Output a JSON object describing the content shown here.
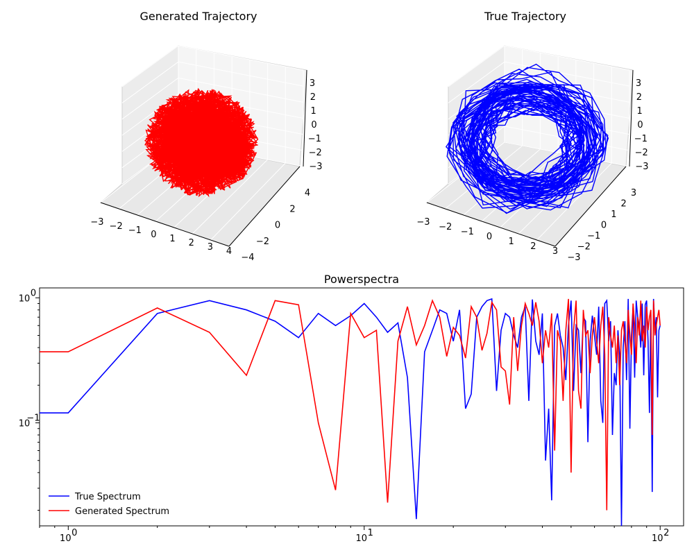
{
  "chart_data": [
    {
      "type": "line",
      "projection": "3d",
      "title": "Generated Trajectory",
      "color": "#ff0000",
      "x_ticks": [
        "−3",
        "−2",
        "−1",
        "0",
        "1",
        "2",
        "3",
        "4"
      ],
      "y_ticks": [
        "−4",
        "−2",
        "0",
        "2",
        "4"
      ],
      "z_ticks": [
        "−3",
        "−2",
        "−1",
        "0",
        "1",
        "2",
        "3"
      ],
      "xlim": [
        -3,
        4
      ],
      "ylim": [
        -4,
        4
      ],
      "zlim": [
        -3,
        3
      ],
      "grid": true
    },
    {
      "type": "line",
      "projection": "3d",
      "title": "True Trajectory",
      "color": "#0000ff",
      "x_ticks": [
        "−3",
        "−2",
        "−1",
        "0",
        "1",
        "2",
        "3"
      ],
      "y_ticks": [
        "−3",
        "−2",
        "−1",
        "0",
        "1",
        "2",
        "3"
      ],
      "z_ticks": [
        "−3",
        "−2",
        "−1",
        "0",
        "1",
        "2",
        "3"
      ],
      "xlim": [
        -3,
        3
      ],
      "ylim": [
        -3,
        3
      ],
      "zlim": [
        -3,
        3
      ],
      "grid": true
    },
    {
      "type": "line",
      "title": "Powerspectra",
      "xscale": "log",
      "yscale": "log",
      "xlim": [
        0.8,
        120
      ],
      "ylim": [
        0.015,
        1.2
      ],
      "x_ticks": [
        {
          "value": 1,
          "label": "10",
          "exp": "0"
        },
        {
          "value": 10,
          "label": "10",
          "exp": "1"
        },
        {
          "value": 100,
          "label": "10",
          "exp": "2"
        }
      ],
      "y_ticks": [
        {
          "value": 0.1,
          "label": "10",
          "exp": "−1"
        },
        {
          "value": 1,
          "label": "10",
          "exp": "0"
        }
      ],
      "legend_position": "bottom-left",
      "series": [
        {
          "name": "True Spectrum",
          "color": "#0000ff",
          "x": [
            0.8,
            1,
            2,
            3,
            4,
            5,
            6,
            7,
            8,
            9,
            10,
            11,
            12,
            13,
            14,
            15,
            16,
            17,
            18,
            19,
            20,
            21,
            22,
            23,
            24,
            25,
            26,
            27,
            28,
            29,
            30,
            31,
            32,
            33,
            34,
            35,
            36,
            37,
            38,
            39,
            40,
            41,
            42,
            43,
            44,
            45,
            46,
            47,
            48,
            49,
            50,
            51,
            52,
            53,
            54,
            55,
            56,
            57,
            58,
            59,
            60,
            61,
            62,
            63,
            64,
            65,
            66,
            67,
            68,
            69,
            70,
            71,
            72,
            73,
            74,
            75,
            76,
            77,
            78,
            79,
            80,
            81,
            82,
            83,
            84,
            85,
            86,
            87,
            88,
            89,
            90,
            91,
            92,
            93,
            94,
            95,
            96,
            97,
            98,
            99,
            100
          ],
          "y": [
            0.12,
            0.12,
            0.75,
            0.95,
            0.8,
            0.65,
            0.48,
            0.75,
            0.6,
            0.72,
            0.9,
            0.7,
            0.53,
            0.63,
            0.23,
            0.017,
            0.37,
            0.55,
            0.8,
            0.75,
            0.45,
            0.8,
            0.13,
            0.17,
            0.7,
            0.85,
            0.95,
            0.98,
            0.18,
            0.55,
            0.75,
            0.7,
            0.5,
            0.4,
            0.7,
            0.85,
            0.15,
            0.97,
            0.45,
            0.35,
            0.75,
            0.05,
            0.13,
            0.024,
            0.6,
            0.75,
            0.5,
            0.4,
            0.22,
            0.6,
            0.95,
            0.18,
            0.6,
            0.55,
            0.25,
            0.7,
            0.65,
            0.07,
            0.45,
            0.72,
            0.5,
            0.35,
            0.85,
            0.15,
            0.1,
            0.9,
            0.95,
            0.45,
            0.65,
            0.08,
            0.25,
            0.2,
            0.55,
            0.35,
            0.015,
            0.4,
            0.65,
            0.22,
            0.98,
            0.09,
            0.5,
            0.85,
            0.23,
            0.95,
            0.7,
            0.6,
            0.4,
            0.9,
            0.24,
            0.88,
            0.95,
            0.45,
            0.12,
            0.75,
            0.028,
            0.98,
            0.55,
            0.7,
            0.16,
            0.55,
            0.6
          ],
          "note": ""
        },
        {
          "name": "Generated Spectrum",
          "color": "#ff0000",
          "x": [
            0.8,
            1,
            2,
            3,
            4,
            5,
            6,
            7,
            8,
            9,
            10,
            11,
            12,
            13,
            14,
            15,
            16,
            17,
            18,
            19,
            20,
            21,
            22,
            23,
            24,
            25,
            26,
            27,
            28,
            29,
            30,
            31,
            32,
            33,
            34,
            35,
            36,
            37,
            38,
            39,
            40,
            41,
            42,
            43,
            44,
            45,
            46,
            47,
            48,
            49,
            50,
            51,
            52,
            53,
            54,
            55,
            56,
            57,
            58,
            59,
            60,
            61,
            62,
            63,
            64,
            65,
            66,
            67,
            68,
            69,
            70,
            71,
            72,
            73,
            74,
            75,
            76,
            77,
            78,
            79,
            80,
            81,
            82,
            83,
            84,
            85,
            86,
            87,
            88,
            89,
            90,
            91,
            92,
            93,
            94,
            95,
            96,
            97,
            98,
            99,
            100
          ],
          "y": [
            0.37,
            0.37,
            0.83,
            0.53,
            0.24,
            0.95,
            0.88,
            0.1,
            0.029,
            0.75,
            0.48,
            0.55,
            0.023,
            0.45,
            0.85,
            0.42,
            0.6,
            0.95,
            0.7,
            0.34,
            0.58,
            0.5,
            0.33,
            0.85,
            0.7,
            0.38,
            0.52,
            0.92,
            0.8,
            0.28,
            0.26,
            0.14,
            0.7,
            0.26,
            0.6,
            0.9,
            0.75,
            0.6,
            0.92,
            0.65,
            0.3,
            0.55,
            0.4,
            0.75,
            0.06,
            0.55,
            0.45,
            0.15,
            0.55,
            0.98,
            0.04,
            0.55,
            0.95,
            0.18,
            0.13,
            0.8,
            0.5,
            0.55,
            0.25,
            0.5,
            0.7,
            0.45,
            0.3,
            0.6,
            0.85,
            0.35,
            0.02,
            0.7,
            0.5,
            0.4,
            0.6,
            0.3,
            0.5,
            0.2,
            0.55,
            0.65,
            0.45,
            0.3,
            0.8,
            0.5,
            0.35,
            0.9,
            0.6,
            0.3,
            0.7,
            0.5,
            0.95,
            0.45,
            0.6,
            0.4,
            0.85,
            0.55,
            0.7,
            0.8,
            0.08,
            0.95,
            0.5,
            0.6,
            0.7,
            0.8,
            0.6
          ],
          "note": ""
        }
      ]
    }
  ]
}
